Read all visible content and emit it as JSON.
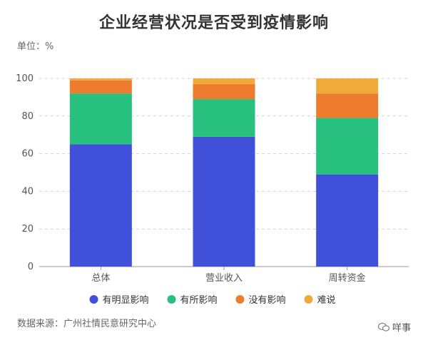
{
  "page": {
    "title": "企业经营状况是否受到疫情影响",
    "unit_label": "单位：%",
    "source": "数据来源：广州社情民意研究中心",
    "watermark": "咩事"
  },
  "chart_data": {
    "type": "bar",
    "stacked": true,
    "title": "企业经营状况是否受到疫情影响",
    "ylabel": "单位：%",
    "xlabel": "",
    "categories": [
      "总体",
      "营业收入",
      "周转资金"
    ],
    "ylim": [
      0,
      100
    ],
    "yticks": [
      0,
      20,
      40,
      60,
      80,
      100
    ],
    "grid": true,
    "legend_position": "bottom",
    "series": [
      {
        "name": "有明显影响",
        "color": "#4050d8",
        "values": [
          65,
          69,
          49
        ]
      },
      {
        "name": "有所影响",
        "color": "#27c07f",
        "values": [
          27,
          20,
          30
        ]
      },
      {
        "name": "没有影响",
        "color": "#ee7c2e",
        "values": [
          7,
          8,
          13
        ]
      },
      {
        "name": "难说",
        "color": "#f0aa3c",
        "values": [
          1,
          3,
          8
        ]
      }
    ]
  }
}
